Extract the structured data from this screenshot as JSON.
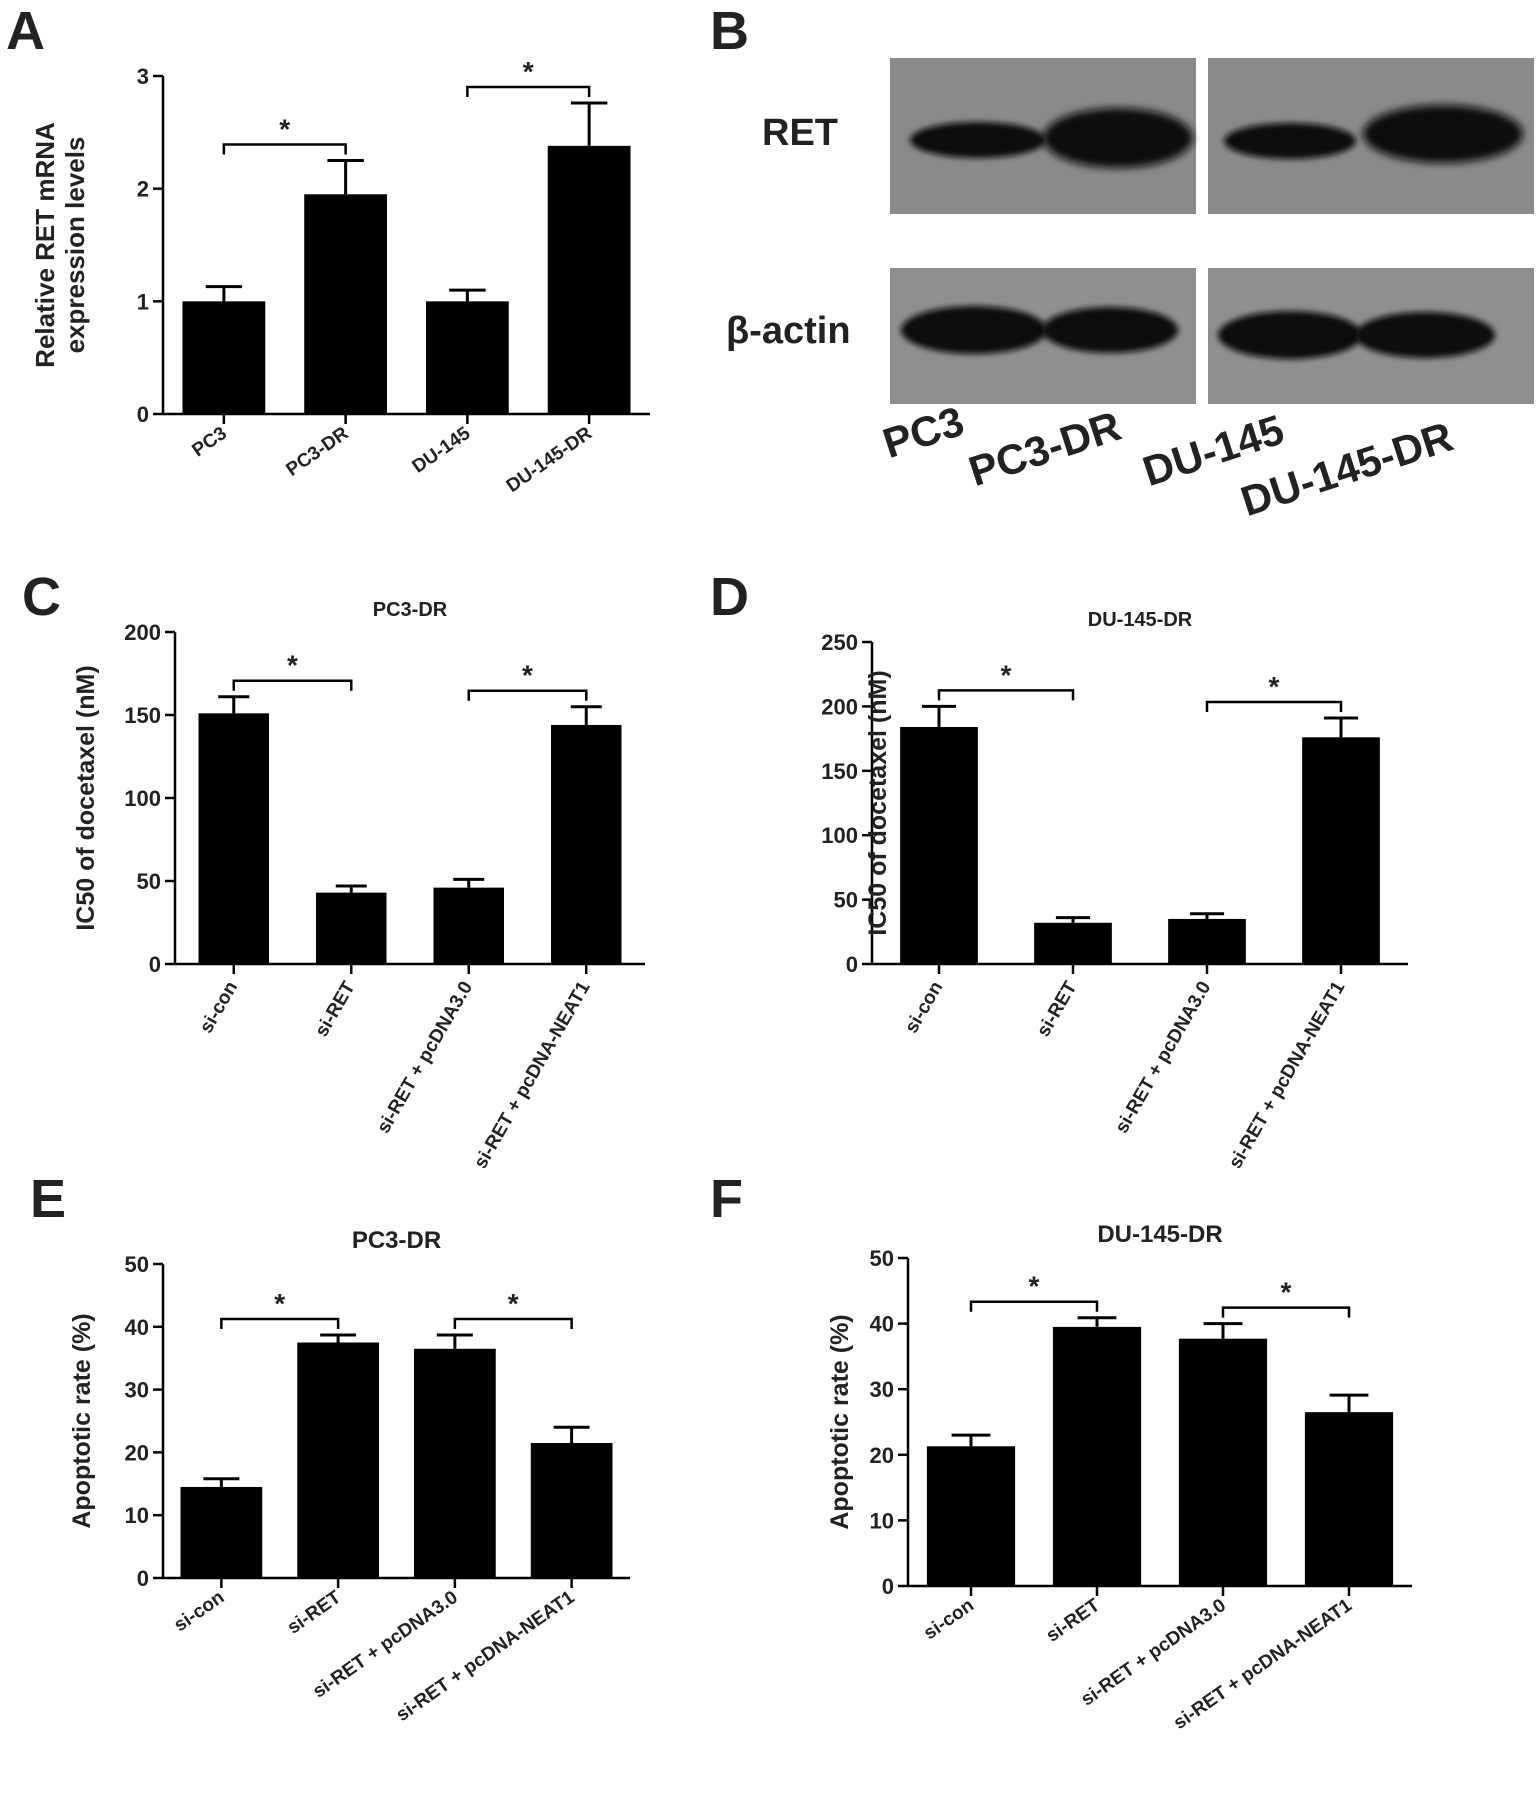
{
  "panel_letters": [
    "A",
    "B",
    "C",
    "D",
    "E",
    "F"
  ],
  "western_blot": {
    "protein_labels": [
      "RET",
      "β-actin"
    ],
    "lane_labels": [
      "PC3",
      "PC3-DR",
      "DU-145",
      "DU-145-DR"
    ]
  },
  "chart_data": [
    {
      "type": "bar",
      "panel": "A",
      "title": "",
      "ylabel": "Relative RET mRNA expression levels",
      "xlabel": "",
      "categories": [
        "PC3",
        "PC3-DR",
        "DU-145",
        "DU-145-DR"
      ],
      "values": [
        1.0,
        1.95,
        1.0,
        2.38
      ],
      "errors": [
        0.13,
        0.3,
        0.1,
        0.38
      ],
      "ylim": [
        0,
        3
      ],
      "yticks": [
        0,
        1,
        2,
        3
      ],
      "significance": [
        {
          "from": 0,
          "to": 1,
          "label": "*"
        },
        {
          "from": 2,
          "to": 3,
          "label": "*"
        }
      ]
    },
    {
      "type": "bar",
      "panel": "C",
      "title": "PC3-DR",
      "ylabel": "IC50 of docetaxel (nM)",
      "xlabel": "",
      "categories": [
        "si-con",
        "si-RET",
        "si-RET + pcDNA3.0",
        "si-RET + pcDNA-NEAT1"
      ],
      "values": [
        151,
        43,
        46,
        144
      ],
      "errors": [
        10,
        4,
        5,
        11
      ],
      "ylim": [
        0,
        200
      ],
      "yticks": [
        0,
        50,
        100,
        150,
        200
      ],
      "significance": [
        {
          "from": 0,
          "to": 1,
          "label": "*"
        },
        {
          "from": 2,
          "to": 3,
          "label": "*"
        }
      ]
    },
    {
      "type": "bar",
      "panel": "D",
      "title": "DU-145-DR",
      "ylabel": "IC50 of docetaxel (nM)",
      "xlabel": "",
      "categories": [
        "si-con",
        "si-RET",
        "si-RET + pcDNA3.0",
        "si-RET + pcDNA-NEAT1"
      ],
      "values": [
        184,
        32,
        35,
        176
      ],
      "errors": [
        16,
        4,
        4,
        15
      ],
      "ylim": [
        0,
        250
      ],
      "yticks": [
        0,
        50,
        100,
        150,
        200,
        250
      ],
      "significance": [
        {
          "from": 0,
          "to": 1,
          "label": "*"
        },
        {
          "from": 2,
          "to": 3,
          "label": "*"
        }
      ]
    },
    {
      "type": "bar",
      "panel": "E",
      "title": "PC3-DR",
      "ylabel": "Apoptotic rate (%)",
      "xlabel": "",
      "categories": [
        "si-con",
        "si-RET",
        "si-RET + pcDNA3.0",
        "si-RET + pcDNA-NEAT1"
      ],
      "values": [
        14.5,
        37.5,
        36.5,
        21.5
      ],
      "errors": [
        1.3,
        1.2,
        2.2,
        2.5
      ],
      "ylim": [
        0,
        50
      ],
      "yticks": [
        0,
        10,
        20,
        30,
        40,
        50
      ],
      "significance": [
        {
          "from": 0,
          "to": 1,
          "label": "*"
        },
        {
          "from": 2,
          "to": 3,
          "label": "*"
        }
      ]
    },
    {
      "type": "bar",
      "panel": "F",
      "title": "DU-145-DR",
      "ylabel": "Apoptotic rate (%)",
      "xlabel": "",
      "categories": [
        "si-con",
        "si-RET",
        "si-RET + pcDNA3.0",
        "si-RET + pcDNA-NEAT1"
      ],
      "values": [
        21.3,
        39.5,
        37.7,
        26.5
      ],
      "errors": [
        1.7,
        1.4,
        2.3,
        2.6
      ],
      "ylim": [
        0,
        50
      ],
      "yticks": [
        0,
        10,
        20,
        30,
        40,
        50
      ],
      "significance": [
        {
          "from": 0,
          "to": 1,
          "label": "*"
        },
        {
          "from": 2,
          "to": 3,
          "label": "*"
        }
      ]
    }
  ]
}
